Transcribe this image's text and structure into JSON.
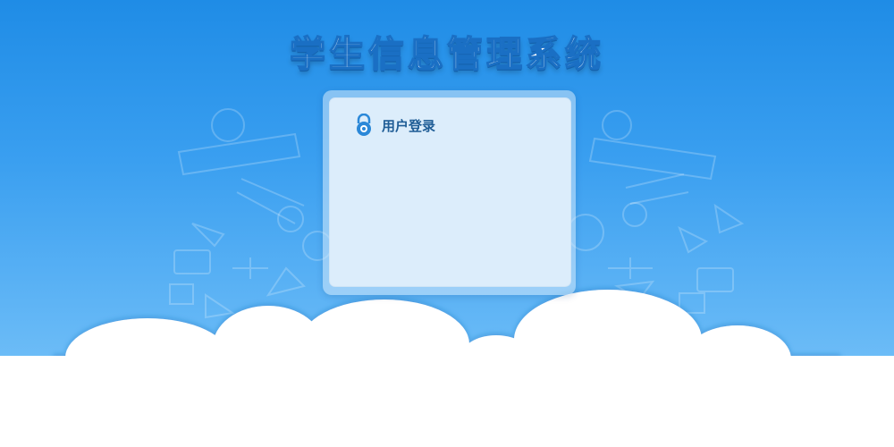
{
  "header": {
    "title": "学生信息管理系统"
  },
  "login_panel": {
    "title": "用户登录",
    "icon": "lock-icon"
  },
  "colors": {
    "sky_top": "#1f8ce6",
    "sky_bottom": "#6cbcf7",
    "panel_bg": "#dcedfb",
    "title_text": "#ffffff",
    "panel_title_text": "#1f5d96"
  }
}
